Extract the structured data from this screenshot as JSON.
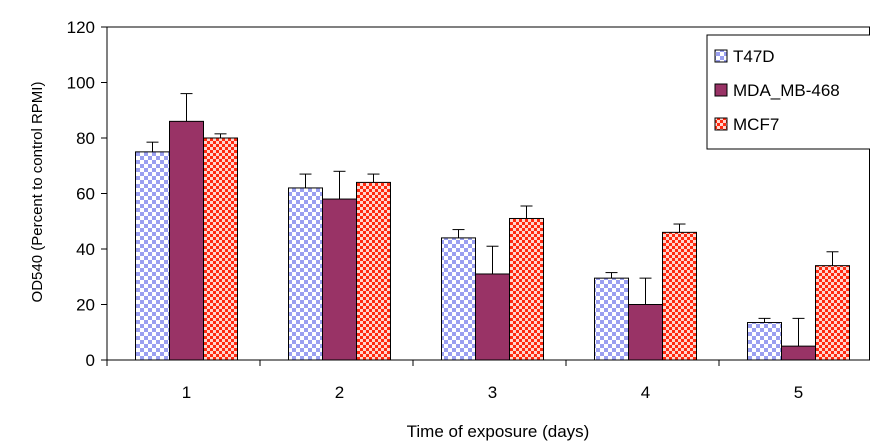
{
  "chart_data": {
    "type": "bar",
    "title": "",
    "xlabel": "Time of exposure (days)",
    "ylabel": "OD540 (Percent to control RPMI)",
    "ylim": [
      0,
      120
    ],
    "yticks": [
      0,
      20,
      40,
      60,
      80,
      100,
      120
    ],
    "grid": false,
    "legend_position": "top-right",
    "categories": [
      "1",
      "2",
      "3",
      "4",
      "5"
    ],
    "series": [
      {
        "name": "T47D",
        "values": [
          75,
          62,
          44,
          29.5,
          13.5
        ],
        "error_plus": [
          3.5,
          5,
          3,
          2,
          1.5
        ],
        "fill": "#aab0f0",
        "pattern": "checker-light-blue"
      },
      {
        "name": "MDA_MB-468",
        "values": [
          86,
          58,
          31,
          20,
          5
        ],
        "error_plus": [
          10,
          10,
          10,
          9.5,
          10
        ],
        "fill": "#993366",
        "pattern": "solid"
      },
      {
        "name": "MCF7",
        "values": [
          80,
          64,
          51,
          46,
          34
        ],
        "error_plus": [
          1.5,
          3,
          4.5,
          3,
          5
        ],
        "fill": "#ff3a1a",
        "pattern": "checker-red"
      }
    ]
  }
}
